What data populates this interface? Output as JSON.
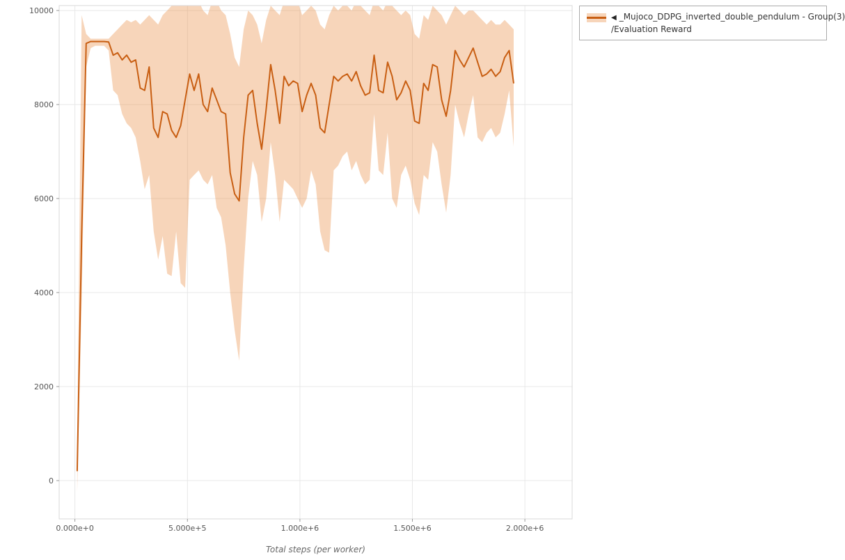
{
  "page": {
    "background": "#ffffff"
  },
  "legend": {
    "collapse_icon": "◀",
    "line1": "_Mujoco_DDPG_inverted_double_pendulum - Group(3)",
    "line2": "/Evaluation Reward"
  },
  "chart_data": {
    "type": "line",
    "title": "",
    "xlabel": "Total steps (per worker)",
    "ylabel": "",
    "grid": true,
    "legend_position": "outside-top-right",
    "xlim": [
      -70000,
      2210000
    ],
    "ylim": [
      -815,
      10105
    ],
    "x_tick_values": [
      0,
      500000,
      1000000,
      1500000,
      2000000
    ],
    "x_tick_labels": [
      "0.000e+0",
      "5.000e+5",
      "1.000e+6",
      "1.500e+6",
      "2.000e+6"
    ],
    "y_tick_values": [
      0,
      2000,
      4000,
      6000,
      8000,
      10000
    ],
    "y_tick_labels": [
      "0",
      "2000",
      "4000",
      "6000",
      "8000",
      "10000"
    ],
    "colors": {
      "line": "#c85e12",
      "band": "#e8873a",
      "band_opacity": 0.35,
      "grid": "#e8e8e8",
      "border": "#d9d9d9",
      "tick": "#999999",
      "tick_label": "#555555"
    },
    "series": [
      {
        "name": "_Mujoco_DDPG_inverted_double_pendulum - Group(3)/Evaluation Reward",
        "x": [
          10000,
          30000,
          50000,
          70000,
          90000,
          110000,
          130000,
          150000,
          170000,
          190000,
          210000,
          230000,
          250000,
          270000,
          290000,
          310000,
          330000,
          350000,
          370000,
          390000,
          410000,
          430000,
          450000,
          470000,
          490000,
          510000,
          530000,
          550000,
          570000,
          590000,
          610000,
          630000,
          650000,
          670000,
          690000,
          710000,
          730000,
          750000,
          770000,
          790000,
          810000,
          830000,
          850000,
          870000,
          890000,
          910000,
          930000,
          950000,
          970000,
          990000,
          1010000,
          1030000,
          1050000,
          1070000,
          1090000,
          1110000,
          1130000,
          1150000,
          1170000,
          1190000,
          1210000,
          1230000,
          1250000,
          1270000,
          1290000,
          1310000,
          1330000,
          1350000,
          1370000,
          1390000,
          1410000,
          1430000,
          1450000,
          1470000,
          1490000,
          1510000,
          1530000,
          1550000,
          1570000,
          1590000,
          1610000,
          1630000,
          1650000,
          1670000,
          1690000,
          1710000,
          1730000,
          1750000,
          1770000,
          1790000,
          1810000,
          1830000,
          1850000,
          1870000,
          1890000,
          1910000,
          1930000,
          1950000
        ],
        "mean": [
          200,
          5200,
          9300,
          9340,
          9340,
          9340,
          9340,
          9330,
          9050,
          9100,
          8950,
          9050,
          8900,
          8950,
          8350,
          8300,
          8800,
          7500,
          7300,
          7850,
          7800,
          7450,
          7300,
          7550,
          8100,
          8650,
          8300,
          8650,
          8000,
          7850,
          8350,
          8100,
          7850,
          7800,
          6550,
          6100,
          5950,
          7300,
          8200,
          8300,
          7600,
          7050,
          7900,
          8850,
          8300,
          7600,
          8600,
          8400,
          8500,
          8450,
          7850,
          8200,
          8450,
          8200,
          7500,
          7400,
          8000,
          8600,
          8500,
          8600,
          8650,
          8500,
          8700,
          8400,
          8200,
          8250,
          9050,
          8300,
          8250,
          8900,
          8600,
          8100,
          8250,
          8500,
          8300,
          7650,
          7600,
          8450,
          8300,
          8850,
          8800,
          8100,
          7750,
          8300,
          9150,
          8950,
          8800,
          9000,
          9200,
          8900,
          8600,
          8650,
          8750,
          8600,
          8700,
          9000,
          9150,
          8450
        ],
        "lower": [
          -250,
          3800,
          8800,
          9200,
          9250,
          9250,
          9250,
          9150,
          8300,
          8200,
          7800,
          7600,
          7500,
          7300,
          6800,
          6200,
          6500,
          5300,
          4700,
          5200,
          4400,
          4350,
          5300,
          4200,
          4100,
          6400,
          6500,
          6600,
          6400,
          6300,
          6500,
          5800,
          5600,
          5000,
          4000,
          3200,
          2550,
          4500,
          6000,
          6800,
          6500,
          5500,
          6000,
          7200,
          6500,
          5500,
          6400,
          6300,
          6200,
          6000,
          5800,
          6000,
          6600,
          6300,
          5300,
          4900,
          4850,
          6600,
          6700,
          6900,
          7000,
          6600,
          6800,
          6500,
          6300,
          6400,
          7800,
          6600,
          6500,
          7400,
          6000,
          5800,
          6500,
          6700,
          6400,
          5900,
          5650,
          6500,
          6400,
          7200,
          7000,
          6300,
          5700,
          6500,
          8000,
          7600,
          7300,
          7800,
          8200,
          7300,
          7200,
          7400,
          7500,
          7300,
          7400,
          7800,
          8300,
          7100
        ],
        "upper": [
          700,
          9900,
          9500,
          9400,
          9400,
          9400,
          9400,
          9400,
          9500,
          9600,
          9700,
          9800,
          9750,
          9800,
          9700,
          9800,
          9900,
          9800,
          9700,
          9900,
          10000,
          10100,
          10200,
          10200,
          10200,
          10200,
          10100,
          10200,
          10000,
          9900,
          10200,
          10200,
          10000,
          9900,
          9500,
          9000,
          8800,
          9600,
          10000,
          9900,
          9700,
          9300,
          9800,
          10100,
          10000,
          9900,
          10200,
          10100,
          10200,
          10200,
          9900,
          10000,
          10100,
          10000,
          9700,
          9600,
          9900,
          10100,
          10000,
          10100,
          10100,
          10000,
          10200,
          10100,
          10000,
          9900,
          10200,
          10100,
          10000,
          10200,
          10100,
          10000,
          9900,
          10000,
          9900,
          9500,
          9400,
          9900,
          9800,
          10100,
          10000,
          9900,
          9700,
          9900,
          10100,
          10000,
          9900,
          10000,
          10000,
          9900,
          9800,
          9700,
          9800,
          9700,
          9700,
          9800,
          9700,
          9600
        ]
      }
    ]
  }
}
